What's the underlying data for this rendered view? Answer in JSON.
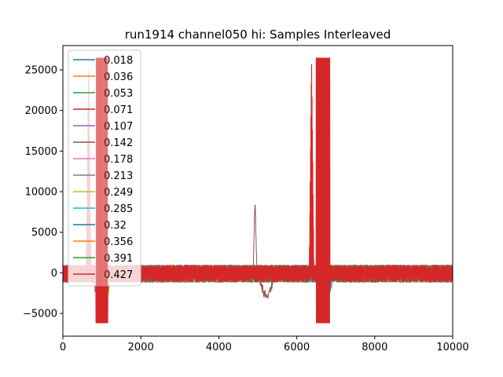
{
  "chart_data": {
    "type": "line",
    "title": "run1914 channel050 hi: Samples Interleaved",
    "xlabel": "",
    "ylabel": "",
    "xlim": [
      0,
      10000
    ],
    "ylim": [
      -7800,
      28000
    ],
    "xticks": [
      0,
      2000,
      4000,
      6000,
      8000,
      10000
    ],
    "yticks": [
      -5000,
      0,
      5000,
      10000,
      15000,
      20000,
      25000
    ],
    "legend_position": "upper-left",
    "grid": false,
    "series": [
      {
        "name": "0.018",
        "color": "#1f77b4"
      },
      {
        "name": "0.036",
        "color": "#ff7f0e"
      },
      {
        "name": "0.053",
        "color": "#2ca02c"
      },
      {
        "name": "0.071",
        "color": "#d62728"
      },
      {
        "name": "0.107",
        "color": "#9467bd"
      },
      {
        "name": "0.142",
        "color": "#8c564b"
      },
      {
        "name": "0.178",
        "color": "#e377c2"
      },
      {
        "name": "0.213",
        "color": "#7f7f7f"
      },
      {
        "name": "0.249",
        "color": "#bcbd22"
      },
      {
        "name": "0.285",
        "color": "#17becf"
      },
      {
        "name": "0.32",
        "color": "#1f77b4"
      },
      {
        "name": "0.356",
        "color": "#ff7f0e"
      },
      {
        "name": "0.391",
        "color": "#2ca02c"
      },
      {
        "name": "0.427",
        "color": "#d62728"
      }
    ],
    "features": {
      "noise_band": [
        -1200,
        1000
      ],
      "saturation_high": 26500,
      "saturation_low": -6200,
      "pulses": [
        {
          "x_start": 600,
          "x_end": 720,
          "peak": 26500,
          "series": "0.427"
        },
        {
          "x_start": 850,
          "x_end": 1150,
          "peak": 26500,
          "trough": -6200,
          "series": "0.427"
        },
        {
          "x_start": 4880,
          "x_end": 4980,
          "peak": 9900,
          "series": "0.142"
        },
        {
          "x_start": 5000,
          "x_end": 5450,
          "trough": -3200,
          "series": "0.142"
        },
        {
          "x_start": 6320,
          "x_end": 6440,
          "peak": 26500,
          "series": "0.427"
        },
        {
          "x_start": 6500,
          "x_end": 6850,
          "peak": 26500,
          "trough": -6200,
          "series": "0.427"
        }
      ]
    }
  }
}
